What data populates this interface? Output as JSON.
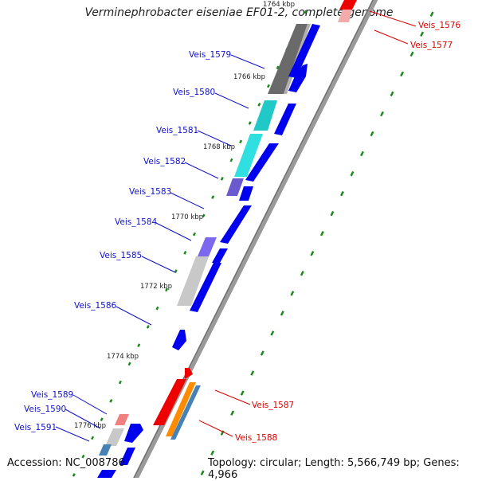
{
  "title": "Verminephrobacter eiseniae EF01-2, complete genome",
  "footer": {
    "accession": "Accession: NC_008786",
    "summary": "Topology: circular; Length: 5,566,749 bp; Genes: 4,966"
  },
  "colors": {
    "backbone": "#8c8c8c",
    "cds_forward": "#0000ee",
    "cds_reverse": "#ee0000",
    "tick": "#1a8a1a",
    "label_forward": "#1010cc",
    "label_reverse": "#dd0000",
    "feature_orange": "#ff8c00",
    "feature_steel": "#4682b4",
    "feature_cyan": "#20c8c8",
    "feature_purple": "#6a5acd",
    "feature_grey": "#b0b0b0",
    "feature_pink": "#f08080"
  },
  "kbp_marks": [
    "1764 kbp",
    "1766 kbp",
    "1768 kbp",
    "1770 kbp",
    "1772 kbp",
    "1774 kbp",
    "1776 kbp"
  ],
  "gene_labels": [
    "Veis_1576",
    "Veis_1577",
    "Veis_1579",
    "Veis_1580",
    "Veis_1581",
    "Veis_1582",
    "Veis_1583",
    "Veis_1584",
    "Veis_1585",
    "Veis_1586",
    "Veis_1587",
    "Veis_1588",
    "Veis_1589",
    "Veis_1590",
    "Veis_1591"
  ]
}
